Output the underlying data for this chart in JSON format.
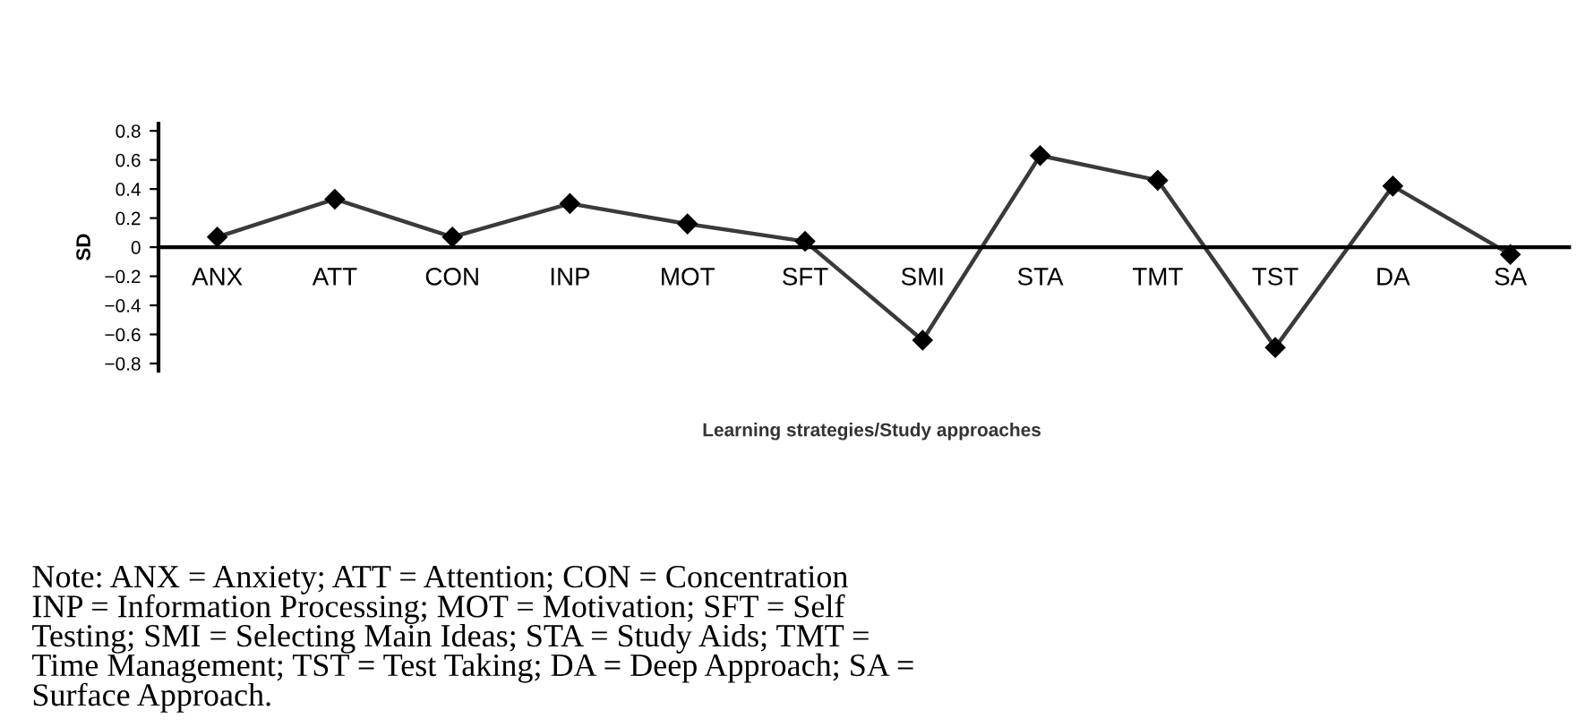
{
  "chart_data": {
    "type": "line",
    "ylabel": "SD",
    "xlabel": "Learning strategies/Study approaches",
    "categories": [
      "ANX",
      "ATT",
      "CON",
      "INP",
      "MOT",
      "SFT",
      "SMI",
      "STA",
      "TMT",
      "TST",
      "DA",
      "SA"
    ],
    "series": [
      {
        "color": "#3a3a3a",
        "values": [
          0.07,
          0.33,
          0.07,
          0.3,
          0.16,
          0.04,
          -0.64,
          0.63,
          0.46,
          -0.69,
          0.42,
          -0.05
        ]
      }
    ],
    "ylim": [
      -0.85,
      0.85
    ],
    "yticks": [
      {
        "value": -0.8,
        "label": "−0.8"
      },
      {
        "value": -0.6,
        "label": "−0.6"
      },
      {
        "value": -0.4,
        "label": "−0.4"
      },
      {
        "value": -0.2,
        "label": "−0.2"
      },
      0,
      0.2,
      0.4,
      0.6,
      0.8
    ],
    "marker": "diamond",
    "line_style": "solid",
    "grid": false,
    "legend": false,
    "annotations": [
      "Note: ANX = Anxiety; ATT = Attention; CON = Concentration\nINP = Information Processing; MOT = Motivation; SFT = Self\nTesting; SMI = Selecting Main Ideas; STA = Study Aids; TMT =\nTime Management; TST = Test Taking; DA = Deep Approach; SA =\nSurface Approach."
    ]
  }
}
